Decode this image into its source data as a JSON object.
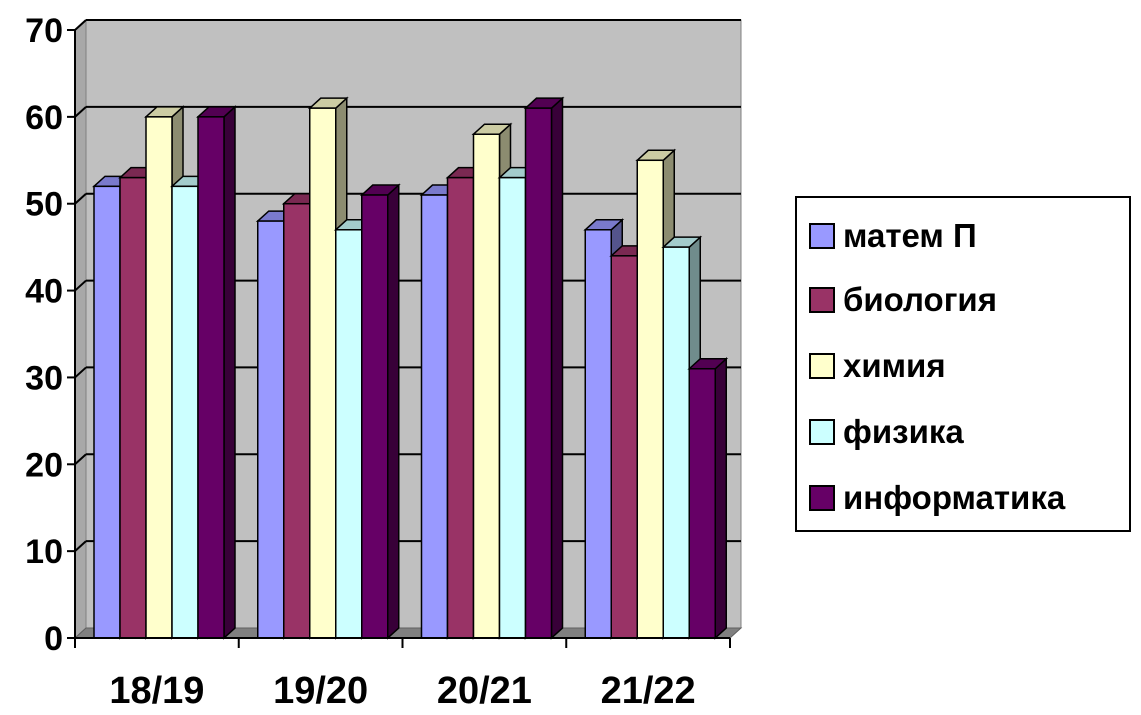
{
  "chart_data": {
    "type": "bar",
    "categories": [
      "18/19",
      "19/20",
      "20/21",
      "21/22"
    ],
    "series": [
      {
        "name": "матем П",
        "values": [
          52,
          48,
          51,
          47
        ],
        "color": "#9999ff"
      },
      {
        "name": "биология",
        "values": [
          53,
          50,
          53,
          44
        ],
        "color": "#993366"
      },
      {
        "name": "химия",
        "values": [
          60,
          61,
          58,
          55
        ],
        "color": "#ffffcc"
      },
      {
        "name": "физика",
        "values": [
          52,
          47,
          53,
          45
        ],
        "color": "#ccffff"
      },
      {
        "name": "информатика",
        "values": [
          60,
          51,
          61,
          31
        ],
        "color": "#660066"
      }
    ],
    "ylim": [
      0,
      70
    ],
    "yticks": [
      0,
      10,
      20,
      30,
      40,
      50,
      60,
      70
    ],
    "grid": true,
    "legend": "right",
    "plot_background": "#c0c0c0"
  }
}
